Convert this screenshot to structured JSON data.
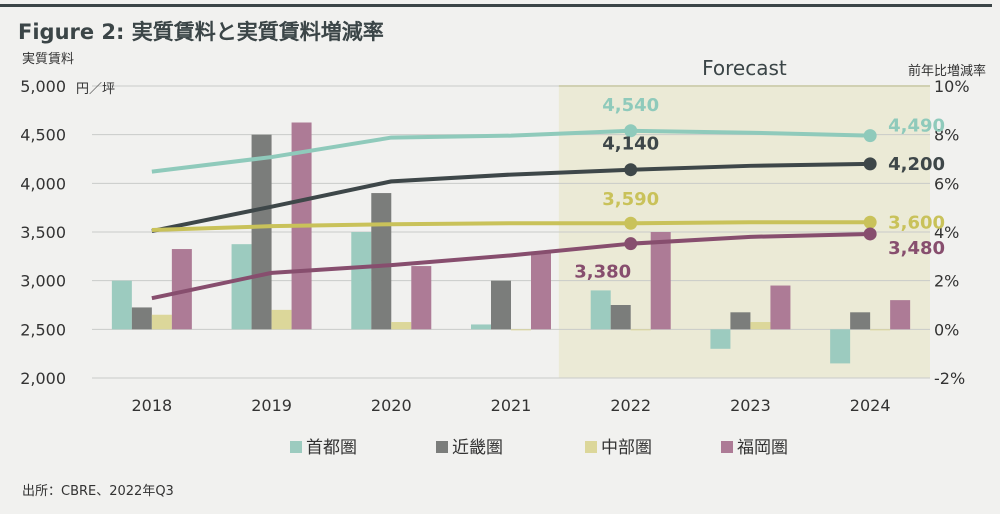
{
  "figure_title": "Figure 2: 実質賃料と実質賃料増減率",
  "source": "出所：CBRE、2022年Q3",
  "chart_data": {
    "type": "bar",
    "title": "Figure 2: 実質賃料と実質賃料増減率",
    "categories": [
      "2018",
      "2019",
      "2020",
      "2021",
      "2022",
      "2023",
      "2024"
    ],
    "y_left": {
      "label": "実質賃料",
      "unit": "円／坪",
      "range": [
        2000,
        5000
      ],
      "ticks": [
        "2,000",
        "2,500",
        "3,000",
        "3,500",
        "4,000",
        "4,500",
        "5,000"
      ]
    },
    "y_right": {
      "label": "前年比増減率",
      "range": [
        -2,
        10
      ],
      "ticks": [
        "-2%",
        "0%",
        "2%",
        "4%",
        "6%",
        "8%",
        "10%"
      ]
    },
    "forecast_label": "Forecast",
    "forecast_start_category": "2022",
    "legend_position": "bottom",
    "grid": "horizontal",
    "bar_series": [
      {
        "name": "首都圏",
        "color": "#9ccbbf",
        "axis": "right",
        "values": [
          2.0,
          3.5,
          4.0,
          0.2,
          1.6,
          -0.8,
          -1.4
        ]
      },
      {
        "name": "近畿圏",
        "color": "#7b7d7b",
        "axis": "right",
        "values": [
          0.9,
          8.0,
          5.6,
          2.0,
          1.0,
          0.7,
          0.7
        ]
      },
      {
        "name": "中部圏",
        "color": "#dcd79a",
        "axis": "right",
        "values": [
          0.6,
          0.8,
          0.3,
          0.0,
          0.0,
          0.3,
          0.0
        ]
      },
      {
        "name": "福岡圏",
        "color": "#ad7b96",
        "axis": "right",
        "values": [
          3.3,
          8.5,
          2.6,
          3.2,
          4.0,
          1.8,
          1.2
        ]
      }
    ],
    "line_series": [
      {
        "name": "首都圏",
        "color": "#8fcabb",
        "axis": "left",
        "values": [
          4120,
          4270,
          4470,
          4490,
          4540,
          4520,
          4490
        ],
        "labels": {
          "2022": "4,540",
          "2024": "4,490"
        }
      },
      {
        "name": "近畿圏",
        "color": "#3e4749",
        "axis": "left",
        "values": [
          3510,
          3760,
          4020,
          4090,
          4140,
          4180,
          4200
        ],
        "labels": {
          "2022": "4,140",
          "2024": "4,200"
        }
      },
      {
        "name": "中部圏",
        "color": "#c9c25a",
        "axis": "left",
        "values": [
          3520,
          3560,
          3580,
          3590,
          3590,
          3600,
          3600
        ],
        "labels": {
          "2022": "3,590",
          "2024": "3,600"
        }
      },
      {
        "name": "福岡圏",
        "color": "#874e6e",
        "axis": "left",
        "values": [
          2820,
          3080,
          3160,
          3260,
          3380,
          3450,
          3480
        ],
        "labels": {
          "2022": "3,380",
          "2024": "3,480"
        }
      }
    ]
  }
}
